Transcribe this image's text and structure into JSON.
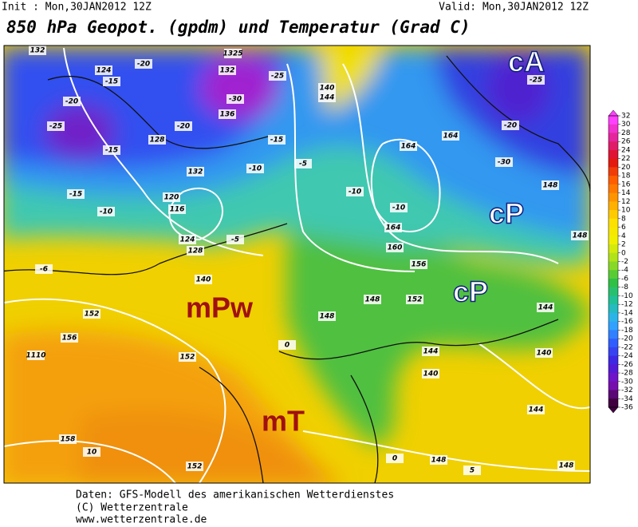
{
  "header": {
    "init": "Init : Mon,30JAN2012 12Z",
    "valid": "Valid: Mon,30JAN2012 12Z",
    "title": "850 hPa Geopot. (gpdm) und Temperatur (Grad C)"
  },
  "map": {
    "air_masses": [
      "cA",
      "cP",
      "cP",
      "mPw",
      "mT"
    ],
    "contour_labels": [
      "132",
      "124",
      "-20",
      "-25",
      "-15",
      "-15",
      "128",
      "-20",
      "1325",
      "132",
      "-25",
      "-30",
      "136",
      "-20",
      "-15",
      "132",
      "-10",
      "120",
      "116",
      "-10",
      "-15",
      "-5",
      "124",
      "128",
      "140",
      "-6",
      "152",
      "156",
      "1110",
      "152",
      "158",
      "10",
      "152",
      "148",
      "148",
      "144",
      "140",
      "144",
      "148",
      "148",
      "164",
      "164",
      "160",
      "164",
      "156",
      "152",
      "148",
      "144",
      "140",
      "148",
      "-10",
      "-10",
      "-20",
      "-30",
      "-25",
      "140",
      "144",
      "-5",
      "0",
      "0",
      "5"
    ]
  },
  "colorbar": {
    "ticks": [
      32,
      30,
      28,
      26,
      24,
      22,
      20,
      18,
      16,
      14,
      12,
      10,
      8,
      6,
      4,
      2,
      0,
      -2,
      -4,
      -6,
      -8,
      -10,
      -12,
      -14,
      -16,
      -18,
      -20,
      -22,
      -24,
      -26,
      -28,
      -30,
      -32,
      -34,
      -36
    ],
    "color_stops": [
      "#ff40ff",
      "#e0208a",
      "#e01010",
      "#ff6000",
      "#ffa000",
      "#ffe000",
      "#f0f000",
      "#a0e020",
      "#30c040",
      "#20c0a0",
      "#30b0ff",
      "#3060ff",
      "#4020e0",
      "#8010c0",
      "#400040"
    ]
  },
  "footer": [
    "Daten: GFS-Modell des amerikanischen Wetterdienstes",
    "(C) Wetterzentrale",
    "www.wetterzentrale.de"
  ]
}
